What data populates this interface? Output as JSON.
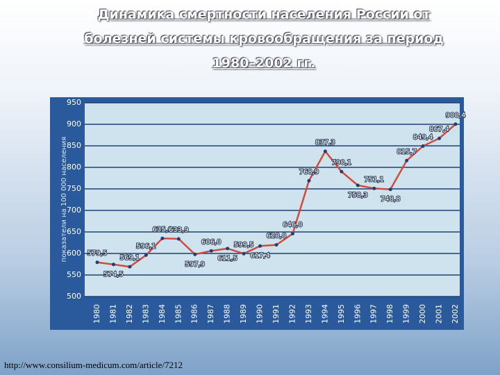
{
  "chart_data": {
    "type": "line",
    "title": "Динамика смертности населения России от болезней системы кровообращения за период 1980–2002 гг.",
    "y_label": "показатели на 100 000 населения",
    "categories": [
      "1980",
      "1981",
      "1982",
      "1983",
      "1984",
      "1985",
      "1986",
      "1987",
      "1988",
      "1989",
      "1990",
      "1991",
      "1992",
      "1993",
      "1994",
      "1995",
      "1996",
      "1997",
      "1998",
      "1999",
      "2000",
      "2001",
      "2002"
    ],
    "series": [
      {
        "color": "#d2493a",
        "values": [
          579.5,
          574.5,
          569.1,
          596.1,
          635.0,
          633.9,
          597.9,
          606.0,
          611.5,
          599.5,
          617.4,
          620.0,
          646.0,
          768.9,
          837.3,
          790.1,
          758.3,
          751.1,
          748.8,
          815.7,
          849.4,
          867.4,
          900.4
        ],
        "value_labels": [
          "579,5",
          "574,5",
          "569,1",
          "596,1",
          "635,0",
          "633,9",
          "597,9",
          "606,0",
          "611,5",
          "599,5",
          "617,4",
          "620,0",
          "646,0",
          "768,9",
          "837,3",
          "790,1",
          "758,3",
          "751,1",
          "748,8",
          "815,7",
          "849,4",
          "867,4",
          "900,4"
        ]
      }
    ],
    "ylim": [
      500,
      950
    ],
    "yticks": [
      500,
      550,
      600,
      650,
      700,
      750,
      800,
      850,
      900,
      950
    ],
    "grid": true,
    "source": "http://www.consilium-medicum.com/article/7212"
  }
}
